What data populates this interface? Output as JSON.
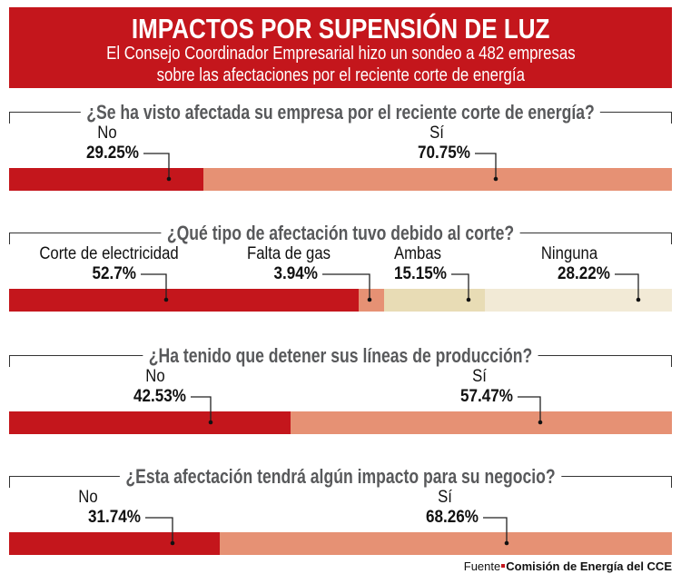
{
  "header": {
    "title": "IMPACTOS POR SUPENSIÓN DE LUZ",
    "subtitle_line1": "El Consejo Coordinador Empresarial hizo un sondeo a 482 empresas",
    "subtitle_line2": "sobre las afectaciones por el reciente corte de energía"
  },
  "colors": {
    "header": "#c4161c",
    "red": "#c4161c",
    "salmon": "#e69174",
    "beige": "#e8dcb5",
    "cream": "#f2ead6",
    "question": "#58595b"
  },
  "chart_data": [
    {
      "type": "bar",
      "stacked": true,
      "orientation": "horizontal",
      "title": "¿Se ha visto afectada su empresa por el reciente corte de energía?",
      "categories": [
        "No",
        "Sí"
      ],
      "values": [
        29.25,
        70.75
      ],
      "value_labels": [
        "29.25%",
        "70.75%"
      ],
      "colors": [
        "#c4161c",
        "#e69174"
      ]
    },
    {
      "type": "bar",
      "stacked": true,
      "orientation": "horizontal",
      "title": "¿Qué tipo de afectación tuvo debido al corte?",
      "categories": [
        "Corte de electricidad",
        "Falta de gas",
        "Ambas",
        "Ninguna"
      ],
      "values": [
        52.7,
        3.94,
        15.15,
        28.22
      ],
      "value_labels": [
        "52.7%",
        "3.94%",
        "15.15%",
        "28.22%"
      ],
      "colors": [
        "#c4161c",
        "#e69174",
        "#e8dcb5",
        "#f2ead6"
      ]
    },
    {
      "type": "bar",
      "stacked": true,
      "orientation": "horizontal",
      "title": "¿Ha tenido que detener sus líneas de producción?",
      "categories": [
        "No",
        "Sí"
      ],
      "values": [
        42.53,
        57.47
      ],
      "value_labels": [
        "42.53%",
        "57.47%"
      ],
      "colors": [
        "#c4161c",
        "#e69174"
      ]
    },
    {
      "type": "bar",
      "stacked": true,
      "orientation": "horizontal",
      "title": "¿Esta afectación tendrá algún impacto para su negocio?",
      "categories": [
        "No",
        "Sí"
      ],
      "values": [
        31.74,
        68.26
      ],
      "value_labels": [
        "31.74%",
        "68.26%"
      ],
      "colors": [
        "#c4161c",
        "#e69174"
      ]
    }
  ],
  "source": {
    "label": "Fuente",
    "text": "Comisión de Energía del CCE"
  }
}
